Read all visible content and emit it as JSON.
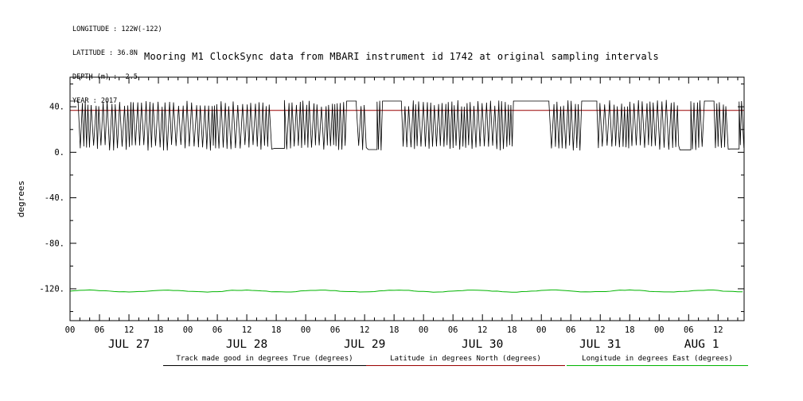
{
  "header": {
    "info_lines": [
      "LONGITUDE : 122W(-122)",
      "LATITUDE : 36.8N",
      "DEPTH (m) : -2.5",
      "YEAR : 2017"
    ]
  },
  "title": "Mooring M1 ClockSync data from MBARI instrument id 1742 at original sampling intervals",
  "chart_data": {
    "type": "line",
    "title": "Mooring M1 ClockSync data from MBARI instrument id 1742 at original sampling intervals",
    "xlabel": "",
    "ylabel": "degrees",
    "ylim": [
      -148,
      66
    ],
    "y_ticks": [
      40,
      0,
      -40,
      -80,
      -120
    ],
    "y_tick_labels": [
      "40.",
      "0.",
      "-40.",
      "-80.",
      "-120."
    ],
    "y_minor_step": 20,
    "x_hours_total": 137.3,
    "x_major_tick_hours": 6,
    "x_minor_tick_hours": 2,
    "hour_tick_label_cycle": [
      "00",
      "06",
      "12",
      "18"
    ],
    "day_labels": [
      "JUL 27",
      "JUL 28",
      "JUL 29",
      "JUL 30",
      "JUL 31",
      "AUG 1"
    ],
    "grid": false,
    "legend_position": "bottom",
    "series": [
      {
        "name": "Track made good in degrees True (degrees)",
        "color": "#000000",
        "style": "oscillating",
        "min": 1.5,
        "max": 46,
        "dwell_value_high": 45,
        "description": "rapid alternation between ~2 and ~46 degrees with occasional flat dwells at 45 and near 0"
      },
      {
        "name": "Latitude in degrees North (degrees)",
        "color": "#990000",
        "style": "constant",
        "value": 36.8
      },
      {
        "name": "Longitude in degrees East (degrees)",
        "color": "#00b400",
        "style": "constant-wiggle",
        "value": -122.0,
        "wiggle_amplitude": 0.8
      }
    ]
  }
}
